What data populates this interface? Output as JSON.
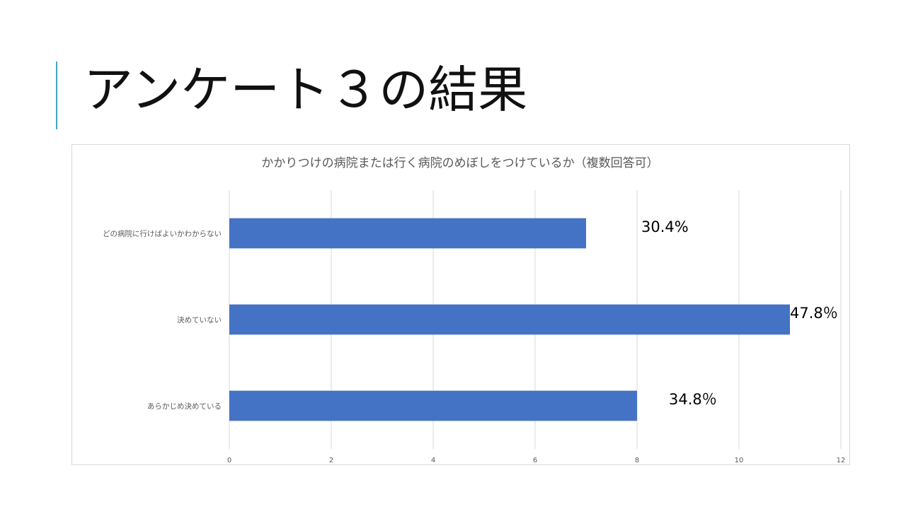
{
  "slide": {
    "title": "アンケート３の結果"
  },
  "chart_data": {
    "type": "bar",
    "orientation": "horizontal",
    "title": "かかりつけの病院または行く病院のめぼしをつけているか（複数回答可）",
    "categories": [
      "どの病院に行けばよいかわからない",
      "決めていない",
      "あらかじめ決めている"
    ],
    "values": [
      7,
      11,
      8
    ],
    "data_labels": [
      "30.4%",
      "47.8％",
      "34.8％"
    ],
    "xlim": [
      0,
      12
    ],
    "xticks": [
      0,
      2,
      4,
      6,
      8,
      10,
      12
    ],
    "grid": true,
    "legend": "none",
    "bar_color": "#4472c4"
  }
}
